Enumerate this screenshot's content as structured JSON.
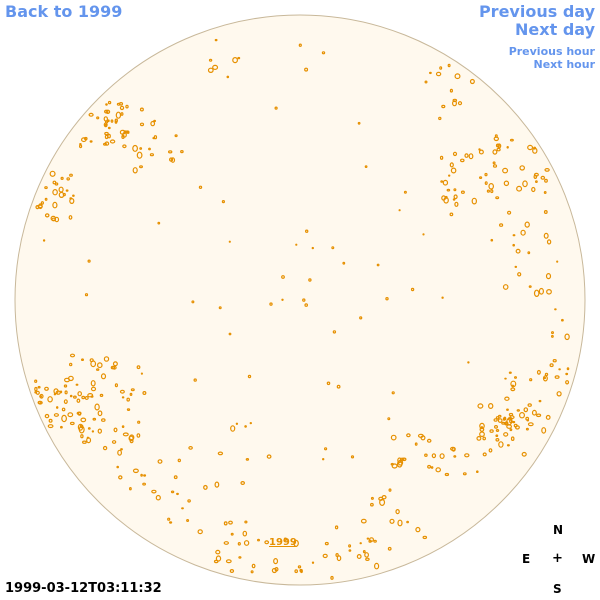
{
  "nav": {
    "back_label": "Back to 1999",
    "prev_day_label": "Previous day",
    "next_day_label": "Next day",
    "prev_hour_label": "Previous hour",
    "next_hour_label": "Next hour"
  },
  "timestamp": "1999-03-12T03:11:32",
  "compass": {
    "n": "N",
    "e": "E",
    "center": "+",
    "w": "W",
    "s": "S"
  },
  "year_label": "1999",
  "colors": {
    "link": "#6495ED",
    "disk_fill": "#FFF9EE",
    "disk_stroke": "#C8B89A",
    "feature": "#E69000"
  }
}
